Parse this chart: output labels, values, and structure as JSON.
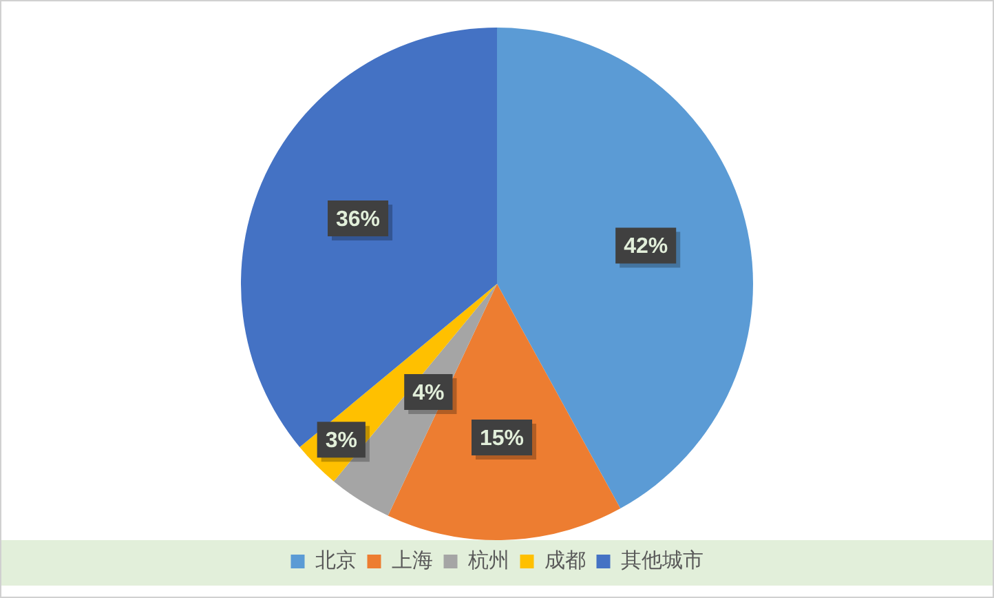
{
  "chart_data": {
    "type": "pie",
    "categories": [
      "北京",
      "上海",
      "杭州",
      "成都",
      "其他城市"
    ],
    "values": [
      42,
      15,
      4,
      3,
      36
    ],
    "colors": [
      "#5b9bd5",
      "#ed7d31",
      "#a5a5a5",
      "#ffc000",
      "#4472c4"
    ],
    "value_labels": [
      "42%",
      "15%",
      "4%",
      "3%",
      "36%"
    ],
    "legend": "bottom"
  }
}
